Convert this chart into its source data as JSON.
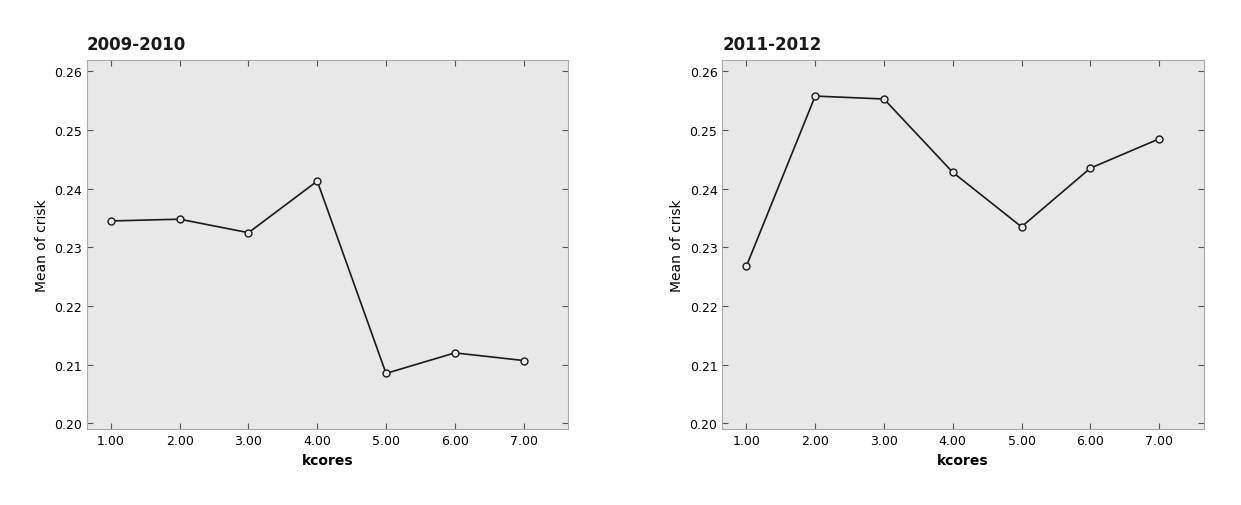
{
  "plot1": {
    "title": "2009-2010",
    "x": [
      1.0,
      2.0,
      3.0,
      4.0,
      5.0,
      6.0,
      7.0
    ],
    "y": [
      0.2345,
      0.2348,
      0.2325,
      0.2413,
      0.2085,
      0.212,
      0.2107
    ],
    "xlabel": "kcores",
    "ylabel": "Mean of crisk",
    "ylim": [
      0.199,
      0.262
    ],
    "xlim": [
      0.65,
      7.65
    ],
    "yticks": [
      0.2,
      0.21,
      0.22,
      0.23,
      0.24,
      0.25,
      0.26
    ],
    "xticks": [
      1.0,
      2.0,
      3.0,
      4.0,
      5.0,
      6.0,
      7.0
    ]
  },
  "plot2": {
    "title": "2011-2012",
    "x": [
      1.0,
      2.0,
      3.0,
      4.0,
      5.0,
      6.0,
      7.0
    ],
    "y": [
      0.2268,
      0.2558,
      0.2553,
      0.2428,
      0.2335,
      0.2435,
      0.2485
    ],
    "xlabel": "kcores",
    "ylabel": "Mean of crisk",
    "ylim": [
      0.199,
      0.262
    ],
    "xlim": [
      0.65,
      7.65
    ],
    "yticks": [
      0.2,
      0.21,
      0.22,
      0.23,
      0.24,
      0.25,
      0.26
    ],
    "xticks": [
      1.0,
      2.0,
      3.0,
      4.0,
      5.0,
      6.0,
      7.0
    ]
  },
  "fig_bg_color": "#ffffff",
  "axes_bg_color": "#e8e8e8",
  "line_color": "#1a1a1a",
  "marker_style": "o",
  "marker_facecolor": "#e8e8e8",
  "marker_edgecolor": "#1a1a1a",
  "marker_size": 5,
  "line_width": 1.2,
  "title_fontsize": 12,
  "label_fontsize": 10,
  "tick_fontsize": 9
}
